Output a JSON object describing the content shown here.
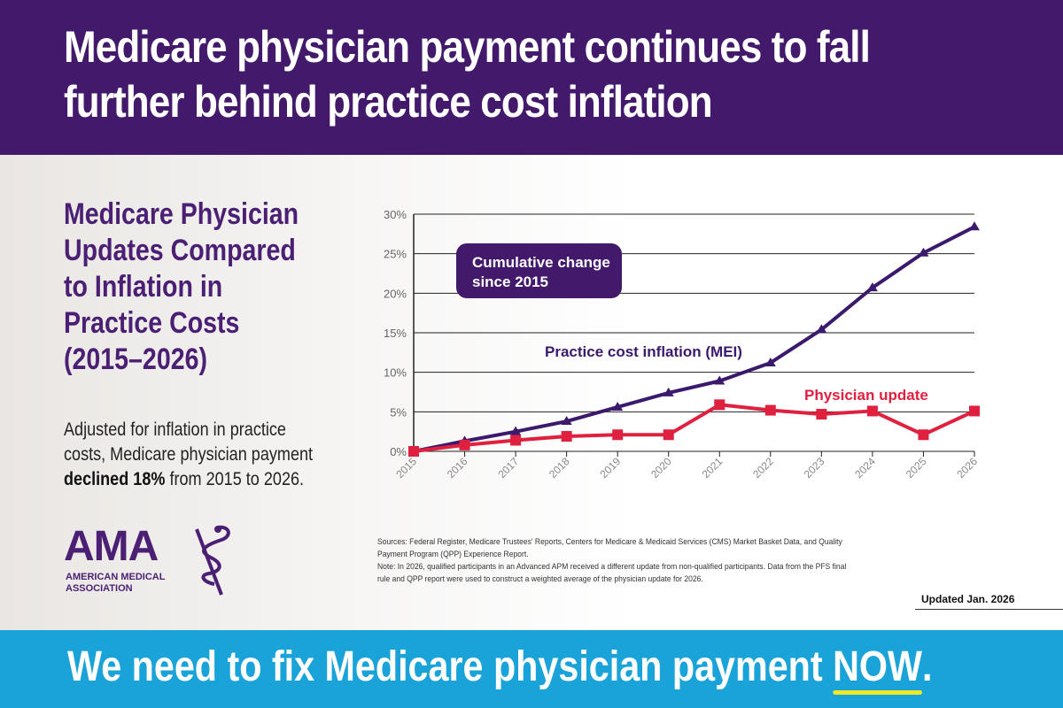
{
  "header": {
    "title": "Medicare physician payment continues to fall further behind practice cost inflation"
  },
  "sidebar": {
    "subtitle": "Medicare Physician Updates Compared to Inflation in Practice Costs (2015–2026)",
    "desc_pre": "Adjusted for inflation in practice costs, Medicare physician payment ",
    "desc_bold": "declined 18%",
    "desc_post": " from 2015 to 2026."
  },
  "logo": {
    "word": "AMA",
    "line1": "AMERICAN MEDICAL",
    "line2": "ASSOCIATION"
  },
  "chart_data": {
    "type": "line",
    "annotation": "Cumulative change since 2015",
    "x": [
      "2015",
      "2016",
      "2017",
      "2018",
      "2019",
      "2020",
      "2021",
      "2022",
      "2023",
      "2024",
      "2025",
      "2026"
    ],
    "ylim": [
      0,
      30
    ],
    "yticks": [
      "0%",
      "5%",
      "10%",
      "15%",
      "20%",
      "25%",
      "30%"
    ],
    "grid": true,
    "series": [
      {
        "name": "Practice cost inflation (MEI)",
        "color": "#3b1a6e",
        "marker": "triangle",
        "values": [
          0,
          1.3,
          2.5,
          3.8,
          5.6,
          7.4,
          8.9,
          11.2,
          15.4,
          20.7,
          25.1,
          28.4
        ]
      },
      {
        "name": "Physician update",
        "color": "#e0203f",
        "marker": "square",
        "values": [
          0,
          0.8,
          1.4,
          1.9,
          2.1,
          2.1,
          5.9,
          5.2,
          4.7,
          5.1,
          2.1,
          5.1
        ]
      }
    ]
  },
  "notes": {
    "sources": "Sources: Federal Register, Medicare Trustees' Reports, Centers for Medicare & Medicaid Services (CMS) Market Basket Data, and Quality Payment Program (QPP) Experience Report.",
    "note": "Note: In 2026, qualified participants in an Advanced APM received a different update from non-qualified participants. Data from the PFS final rule and QPP report were used to construct a weighted average of the physician update for 2026.",
    "updated": "Updated Jan. 2026"
  },
  "footer": {
    "text_pre": "We need to fix Medicare physician payment ",
    "text_em": "NOW",
    "text_post": "."
  }
}
